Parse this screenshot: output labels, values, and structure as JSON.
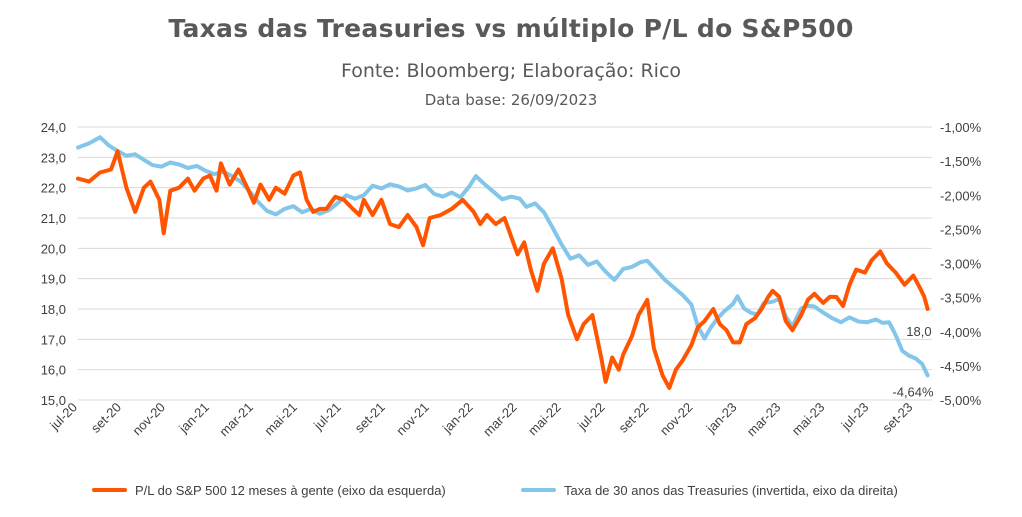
{
  "title": "Taxas das Treasuries vs múltiplo P/L do S&P500",
  "subtitle": "Fonte: Bloomberg; Elaboração: Rico",
  "data_base": "Data base: 26/09/2023",
  "colors": {
    "pe": "#FF5500",
    "treasury": "#83C6EA",
    "grid": "#D9D9D9",
    "text": "#404040"
  },
  "chart_data": {
    "type": "line",
    "title": "Taxas das Treasuries vs múltiplo P/L do S&P500",
    "x_ticks": [
      "jul-20",
      "set-20",
      "nov-20",
      "jan-21",
      "mar-21",
      "mai-21",
      "jul-21",
      "set-21",
      "nov-21",
      "jan-22",
      "mar-22",
      "mai-22",
      "jul-22",
      "set-22",
      "nov-22",
      "jan-23",
      "mar-23",
      "mai-23",
      "jul-23",
      "set-23"
    ],
    "x_range_months": [
      0,
      38.85
    ],
    "y_left": {
      "min": 15.0,
      "max": 24.0,
      "step": 1.0,
      "ticks": [
        "15,0",
        "16,0",
        "17,0",
        "18,0",
        "19,0",
        "20,0",
        "21,0",
        "22,0",
        "23,0",
        "24,0"
      ]
    },
    "y_right": {
      "min": -5.0,
      "max": -1.0,
      "step": 0.5,
      "ticks": [
        "-5,00%",
        "-4,50%",
        "-4,00%",
        "-3,50%",
        "-3,00%",
        "-2,50%",
        "-2,00%",
        "-1,50%",
        "-1,00%"
      ]
    },
    "series": [
      {
        "name": "P/L do S&P 500 12 meses à gente (eixo da esquerda)",
        "axis": "left",
        "end_label": "18,0",
        "points": [
          [
            0,
            22.3
          ],
          [
            0.5,
            22.2
          ],
          [
            1,
            22.5
          ],
          [
            1.5,
            22.6
          ],
          [
            1.8,
            23.2
          ],
          [
            2.2,
            22.0
          ],
          [
            2.6,
            21.2
          ],
          [
            3,
            22.0
          ],
          [
            3.3,
            22.2
          ],
          [
            3.7,
            21.6
          ],
          [
            3.9,
            20.5
          ],
          [
            4.2,
            21.9
          ],
          [
            4.6,
            22.0
          ],
          [
            5,
            22.3
          ],
          [
            5.3,
            21.9
          ],
          [
            5.7,
            22.3
          ],
          [
            6,
            22.4
          ],
          [
            6.3,
            21.9
          ],
          [
            6.5,
            22.8
          ],
          [
            6.9,
            22.1
          ],
          [
            7.3,
            22.6
          ],
          [
            7.7,
            22.0
          ],
          [
            8,
            21.5
          ],
          [
            8.3,
            22.1
          ],
          [
            8.7,
            21.6
          ],
          [
            9,
            22.0
          ],
          [
            9.4,
            21.8
          ],
          [
            9.8,
            22.4
          ],
          [
            10.1,
            22.5
          ],
          [
            10.4,
            21.6
          ],
          [
            10.7,
            21.2
          ],
          [
            11,
            21.3
          ],
          [
            11.3,
            21.3
          ],
          [
            11.7,
            21.7
          ],
          [
            12.1,
            21.6
          ],
          [
            12.5,
            21.3
          ],
          [
            12.8,
            21.1
          ],
          [
            13,
            21.6
          ],
          [
            13.4,
            21.1
          ],
          [
            13.8,
            21.6
          ],
          [
            14.2,
            20.8
          ],
          [
            14.6,
            20.7
          ],
          [
            15,
            21.1
          ],
          [
            15.4,
            20.7
          ],
          [
            15.7,
            20.1
          ],
          [
            16,
            21.0
          ],
          [
            16.5,
            21.1
          ],
          [
            17,
            21.3
          ],
          [
            17.5,
            21.6
          ],
          [
            18,
            21.2
          ],
          [
            18.3,
            20.8
          ],
          [
            18.6,
            21.1
          ],
          [
            19,
            20.8
          ],
          [
            19.4,
            21.0
          ],
          [
            19.8,
            20.2
          ],
          [
            20,
            19.8
          ],
          [
            20.3,
            20.2
          ],
          [
            20.6,
            19.3
          ],
          [
            20.9,
            18.6
          ],
          [
            21.2,
            19.5
          ],
          [
            21.6,
            20.0
          ],
          [
            22,
            19.0
          ],
          [
            22.3,
            17.8
          ],
          [
            22.7,
            17.0
          ],
          [
            23,
            17.5
          ],
          [
            23.4,
            17.8
          ],
          [
            23.8,
            16.4
          ],
          [
            24,
            15.6
          ],
          [
            24.3,
            16.4
          ],
          [
            24.6,
            16.0
          ],
          [
            24.8,
            16.5
          ],
          [
            25.2,
            17.1
          ],
          [
            25.5,
            17.8
          ],
          [
            25.9,
            18.3
          ],
          [
            26.2,
            16.7
          ],
          [
            26.6,
            15.8
          ],
          [
            26.9,
            15.4
          ],
          [
            27.2,
            16.0
          ],
          [
            27.5,
            16.3
          ],
          [
            27.9,
            16.8
          ],
          [
            28.2,
            17.4
          ],
          [
            28.5,
            17.6
          ],
          [
            28.9,
            18.0
          ],
          [
            29.2,
            17.5
          ],
          [
            29.5,
            17.3
          ],
          [
            29.8,
            16.9
          ],
          [
            30.1,
            16.9
          ],
          [
            30.4,
            17.5
          ],
          [
            30.8,
            17.7
          ],
          [
            31.1,
            18.0
          ],
          [
            31.4,
            18.4
          ],
          [
            31.6,
            18.6
          ],
          [
            31.9,
            18.4
          ],
          [
            32.2,
            17.6
          ],
          [
            32.5,
            17.3
          ],
          [
            32.9,
            17.8
          ],
          [
            33.2,
            18.3
          ],
          [
            33.5,
            18.5
          ],
          [
            33.9,
            18.2
          ],
          [
            34.2,
            18.4
          ],
          [
            34.5,
            18.4
          ],
          [
            34.8,
            18.1
          ],
          [
            35.1,
            18.8
          ],
          [
            35.4,
            19.3
          ],
          [
            35.8,
            19.2
          ],
          [
            36.1,
            19.6
          ],
          [
            36.5,
            19.9
          ],
          [
            36.8,
            19.5
          ],
          [
            37.2,
            19.2
          ],
          [
            37.6,
            18.8
          ],
          [
            38.0,
            19.1
          ],
          [
            38.3,
            18.7
          ],
          [
            38.5,
            18.4
          ],
          [
            38.65,
            18.0
          ]
        ]
      },
      {
        "name": "Taxa de 30 anos das Treasuries (invertida, eixo da direita)",
        "axis": "right",
        "end_label": "-4,64%",
        "points": [
          [
            0,
            -1.3
          ],
          [
            0.5,
            -1.24
          ],
          [
            1,
            -1.15
          ],
          [
            1.4,
            -1.27
          ],
          [
            1.8,
            -1.35
          ],
          [
            2.2,
            -1.42
          ],
          [
            2.6,
            -1.4
          ],
          [
            3.0,
            -1.48
          ],
          [
            3.4,
            -1.56
          ],
          [
            3.8,
            -1.58
          ],
          [
            4.2,
            -1.52
          ],
          [
            4.6,
            -1.55
          ],
          [
            5,
            -1.6
          ],
          [
            5.4,
            -1.57
          ],
          [
            5.8,
            -1.64
          ],
          [
            6.2,
            -1.69
          ],
          [
            6.6,
            -1.65
          ],
          [
            7.0,
            -1.72
          ],
          [
            7.4,
            -1.8
          ],
          [
            7.8,
            -1.94
          ],
          [
            8.2,
            -2.1
          ],
          [
            8.6,
            -2.23
          ],
          [
            9.0,
            -2.28
          ],
          [
            9.4,
            -2.2
          ],
          [
            9.8,
            -2.16
          ],
          [
            10.2,
            -2.25
          ],
          [
            10.6,
            -2.2
          ],
          [
            11.0,
            -2.27
          ],
          [
            11.4,
            -2.22
          ],
          [
            11.8,
            -2.12
          ],
          [
            12.2,
            -2.0
          ],
          [
            12.6,
            -2.05
          ],
          [
            13.0,
            -2.0
          ],
          [
            13.4,
            -1.86
          ],
          [
            13.8,
            -1.9
          ],
          [
            14.2,
            -1.84
          ],
          [
            14.6,
            -1.87
          ],
          [
            15,
            -1.93
          ],
          [
            15.4,
            -1.9
          ],
          [
            15.8,
            -1.85
          ],
          [
            16.2,
            -1.98
          ],
          [
            16.6,
            -2.02
          ],
          [
            17,
            -1.96
          ],
          [
            17.4,
            -2.03
          ],
          [
            17.8,
            -1.87
          ],
          [
            18.1,
            -1.72
          ],
          [
            18.5,
            -1.84
          ],
          [
            18.9,
            -1.95
          ],
          [
            19.3,
            -2.06
          ],
          [
            19.7,
            -2.02
          ],
          [
            20.1,
            -2.05
          ],
          [
            20.4,
            -2.17
          ],
          [
            20.8,
            -2.12
          ],
          [
            21.2,
            -2.25
          ],
          [
            21.6,
            -2.48
          ],
          [
            22,
            -2.72
          ],
          [
            22.4,
            -2.93
          ],
          [
            22.8,
            -2.88
          ],
          [
            23.2,
            -3.02
          ],
          [
            23.6,
            -2.97
          ],
          [
            24,
            -3.12
          ],
          [
            24.4,
            -3.24
          ],
          [
            24.8,
            -3.08
          ],
          [
            25.2,
            -3.05
          ],
          [
            25.6,
            -2.98
          ],
          [
            25.9,
            -2.96
          ],
          [
            26.3,
            -3.1
          ],
          [
            26.7,
            -3.24
          ],
          [
            27.1,
            -3.35
          ],
          [
            27.5,
            -3.46
          ],
          [
            27.9,
            -3.6
          ],
          [
            28.2,
            -3.92
          ],
          [
            28.5,
            -4.1
          ],
          [
            28.8,
            -3.93
          ],
          [
            29.1,
            -3.8
          ],
          [
            29.4,
            -3.7
          ],
          [
            29.8,
            -3.59
          ],
          [
            30.0,
            -3.48
          ],
          [
            30.3,
            -3.66
          ],
          [
            30.6,
            -3.72
          ],
          [
            30.9,
            -3.75
          ],
          [
            31.2,
            -3.58
          ],
          [
            31.6,
            -3.56
          ],
          [
            31.9,
            -3.52
          ],
          [
            32.2,
            -3.78
          ],
          [
            32.5,
            -3.92
          ],
          [
            32.9,
            -3.66
          ],
          [
            33.2,
            -3.62
          ],
          [
            33.5,
            -3.63
          ],
          [
            33.9,
            -3.72
          ],
          [
            34.3,
            -3.8
          ],
          [
            34.7,
            -3.86
          ],
          [
            35.1,
            -3.79
          ],
          [
            35.5,
            -3.85
          ],
          [
            35.9,
            -3.86
          ],
          [
            36.3,
            -3.82
          ],
          [
            36.6,
            -3.87
          ],
          [
            36.9,
            -3.86
          ],
          [
            37.2,
            -4.05
          ],
          [
            37.5,
            -4.28
          ],
          [
            37.8,
            -4.35
          ],
          [
            38.1,
            -4.39
          ],
          [
            38.4,
            -4.47
          ],
          [
            38.65,
            -4.64
          ]
        ]
      }
    ]
  }
}
